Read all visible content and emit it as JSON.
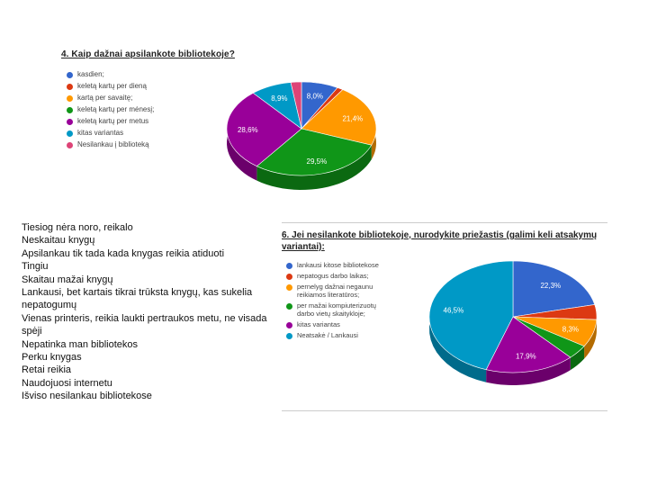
{
  "chart_data": [
    {
      "type": "pie",
      "title": "4. Kaip dažnai apsilankote bibliotekoje?",
      "categories": [
        "kasdien;",
        "keletą kartų per dieną",
        "kartą per savaitę;",
        "keletą kartų per mėnesį;",
        "keletą kartų per metus",
        "kitas variantas",
        "Nesilankau į biblioteką"
      ],
      "values": [
        8.0,
        1.3,
        21.4,
        29.5,
        28.6,
        8.9,
        2.3
      ],
      "labels": [
        "8,0%",
        "",
        "21,4%",
        "29,5%",
        "28,6%",
        "8,9%",
        ""
      ],
      "colors": [
        "#3366cc",
        "#dc3912",
        "#ff9900",
        "#109618",
        "#990099",
        "#0099c6",
        "#dd4477"
      ]
    },
    {
      "type": "pie",
      "title": "6. Jei nesilankote bibliotekoje, nurodykite priežastis (galimi keli atsakymų variantai):",
      "categories": [
        "lankausi kitose bibliotekose",
        "nepatogus darbo laikas;",
        "pernelyg dažnai negaunu reikiamos literatūros;",
        "per mažai kompiuterizuotų darbo vietų skaitykloje;",
        "kitas variantas",
        "Neatsakė / Lankausi"
      ],
      "values": [
        22.3,
        4.5,
        8.3,
        4.3,
        17.9,
        46.5
      ],
      "labels": [
        "22,3%",
        "",
        "8,3%",
        "",
        "17,9%",
        "46,5%"
      ],
      "colors": [
        "#3366cc",
        "#dc3912",
        "#ff9900",
        "#109618",
        "#990099",
        "#0099c6"
      ]
    }
  ],
  "reasons": [
    "Tiesiog nėra noro, reikalo",
    "Neskaitau knygų",
    "Apsilankau tik tada kada knygas reikia atiduoti",
    "Tingiu",
    "Skaitau mažai knygų",
    "Lankausi, bet kartais tikrai trūksta knygų, kas sukelia nepatogumų",
    "Vienas printeris, reikia laukti pertraukos metu, ne visada spėji",
    "Nepatinka man bibliotekos",
    "Perku knygas",
    "Retai reikia",
    "Naudojuosi internetu",
    "Išviso nesilankau bibliotekose"
  ]
}
